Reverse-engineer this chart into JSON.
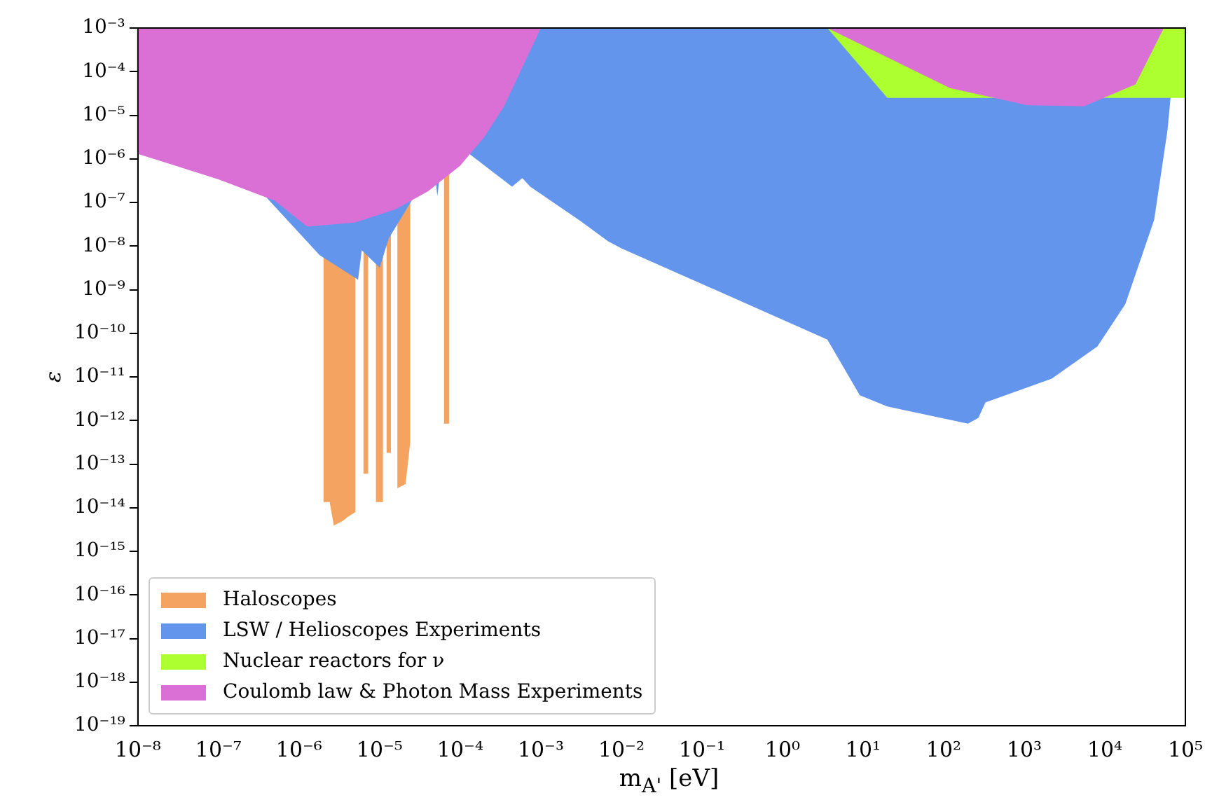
{
  "chart_data": {
    "type": "area",
    "xlabel": "m$_{A'}$ [eV]",
    "ylabel": "ε",
    "log": "xy",
    "grid": false,
    "legend": "bottom left",
    "xlim": [
      1e-08,
      100000
    ],
    "ylim": [
      1e-19,
      0.001
    ],
    "xticks": [
      {
        "value": 1e-08,
        "label": "10⁻⁸"
      },
      {
        "value": 1e-07,
        "label": "10⁻⁷"
      },
      {
        "value": 1e-06,
        "label": "10⁻⁶"
      },
      {
        "value": 1e-05,
        "label": "10⁻⁵"
      },
      {
        "value": 0.0001,
        "label": "10⁻⁴"
      },
      {
        "value": 0.001,
        "label": "10⁻³"
      },
      {
        "value": 0.01,
        "label": "10⁻²"
      },
      {
        "value": 0.1,
        "label": "10⁻¹"
      },
      {
        "value": 1,
        "label": "10⁰"
      },
      {
        "value": 10,
        "label": "10¹"
      },
      {
        "value": 100,
        "label": "10²"
      },
      {
        "value": 1000,
        "label": "10³"
      },
      {
        "value": 10000,
        "label": "10⁴"
      },
      {
        "value": 100000,
        "label": "10⁵"
      }
    ],
    "yticks": [
      {
        "value": 1e-19,
        "label": "10⁻¹⁹"
      },
      {
        "value": 1e-18,
        "label": "10⁻¹⁸"
      },
      {
        "value": 1e-17,
        "label": "10⁻¹⁷"
      },
      {
        "value": 1e-16,
        "label": "10⁻¹⁶"
      },
      {
        "value": 1e-15,
        "label": "10⁻¹⁵"
      },
      {
        "value": 1e-14,
        "label": "10⁻¹⁴"
      },
      {
        "value": 1e-13,
        "label": "10⁻¹³"
      },
      {
        "value": 1e-12,
        "label": "10⁻¹²"
      },
      {
        "value": 1e-11,
        "label": "10⁻¹¹"
      },
      {
        "value": 1e-10,
        "label": "10⁻¹⁰"
      },
      {
        "value": 1e-09,
        "label": "10⁻⁹"
      },
      {
        "value": 1e-08,
        "label": "10⁻⁸"
      },
      {
        "value": 1e-07,
        "label": "10⁻⁷"
      },
      {
        "value": 1e-06,
        "label": "10⁻⁶"
      },
      {
        "value": 1e-05,
        "label": "10⁻⁵"
      },
      {
        "value": 0.0001,
        "label": "10⁻⁴"
      },
      {
        "value": 0.001,
        "label": "10⁻³"
      }
    ],
    "series": [
      {
        "name": "Haloscopes",
        "color": "#f4a460",
        "x": [
          2e-06,
          2e-06,
          2.4e-06,
          2.7e-06,
          3.5e-06,
          4.1e-06,
          5e-06,
          5e-06,
          6.3e-06,
          6.3e-06,
          7.2e-06,
          7.2e-06,
          9e-06,
          9e-06,
          1.1e-05,
          1.1e-05,
          1.22e-05,
          1.22e-05,
          1.38e-05,
          1.38e-05,
          1.66e-05,
          1.66e-05,
          2.1e-05,
          2.4e-05,
          2.4e-05,
          6.3e-05,
          6.3e-05,
          7.3e-05,
          7.3e-05
        ],
        "values": [
          0.001,
          1.35e-14,
          1.35e-14,
          3.9e-15,
          5e-15,
          6.3e-15,
          7.9e-15,
          0.001,
          0.001,
          6e-14,
          6e-14,
          0.001,
          0.001,
          1.35e-14,
          1.35e-14,
          0.001,
          0.001,
          1.8e-13,
          1.8e-13,
          0.001,
          0.001,
          2.8e-14,
          3.5e-14,
          3.2e-13,
          0.001,
          0.001,
          8.5e-13,
          8.5e-13,
          0.001
        ]
      },
      {
        "name": "LSW / Helioscopes Experiments",
        "color": "#6495ed",
        "x": [
          4e-07,
          4e-07,
          1.8e-06,
          5.4e-06,
          6e-06,
          1e-05,
          1.3e-05,
          2.7e-05,
          5e-05,
          5.2e-05,
          5.5e-05,
          0.00013,
          0.00044,
          0.00059,
          0.00074,
          0.0032,
          0.0068,
          0.01,
          3.6,
          9.1,
          20,
          200,
          270,
          330,
          2200,
          8100,
          18000,
          41000,
          60000,
          79000
        ],
        "values": [
          0.001,
          1.26e-07,
          6.2e-09,
          1.7e-09,
          8e-09,
          3.2e-09,
          1.5e-08,
          1.4e-07,
          2.8e-07,
          1.4e-07,
          3.2e-07,
          1.3e-06,
          2.3e-07,
          3.6e-07,
          2.3e-07,
          3.6e-08,
          1.3e-08,
          8.9e-09,
          7.2e-11,
          3.8e-12,
          2.1e-12,
          8.5e-13,
          1.15e-12,
          2.6e-12,
          9.1e-12,
          5e-11,
          4.7e-10,
          4e-08,
          4.5e-06,
          0.001
        ]
      },
      {
        "name": "Nuclear reactors for ν",
        "color": "#adff2f",
        "x": [
          3.6,
          20,
          100000,
          100000
        ],
        "values": [
          0.001,
          2.5e-05,
          2.5e-05,
          0.001
        ]
      },
      {
        "name": "Coulomb law & Photon Mass Experiments",
        "color": "#da70d6",
        "x": [
          1e-08,
          1e-08,
          1e-07,
          5e-07,
          1.26e-06,
          5e-06,
          1.58e-05,
          4e-05,
          0.0001,
          0.0002,
          0.00035,
          0.001,
          0.01,
          3.6,
          120,
          1100,
          5500,
          24000,
          54000
        ],
        "values": [
          0.001,
          1.3e-06,
          3.4e-07,
          1.1e-07,
          2.8e-08,
          3.5e-08,
          7e-08,
          1.8e-07,
          7e-07,
          3.2e-06,
          1.6e-05,
          0.001,
          null,
          0.001,
          4.2e-05,
          1.7e-05,
          1.6e-05,
          5.1e-05,
          0.001
        ]
      }
    ]
  }
}
